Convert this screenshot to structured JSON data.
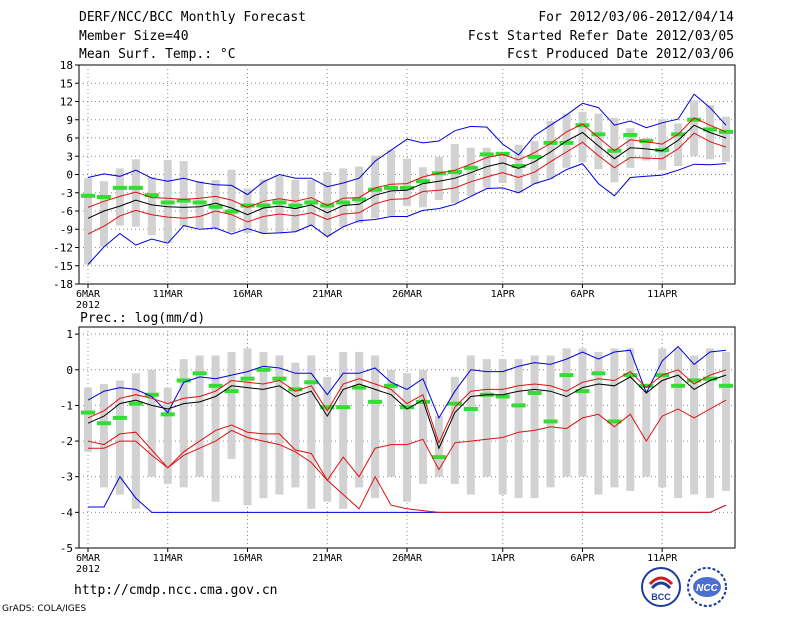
{
  "header": {
    "title": "DERF/NCC/BCC Monthly Forecast",
    "member_size": "Member Size=40",
    "variable": "Mean Surf. Temp.: °C",
    "period": "For 2012/03/06-2012/04/14",
    "started": "Fcst Started Refer Date 2012/03/05",
    "produced": "Fcst Produced Date 2012/03/06"
  },
  "footer": {
    "url": "http://cmdp.ncc.cma.gov.cn",
    "grads": "GrADS: COLA/IGES",
    "logo_bcc": "BCC",
    "logo_ncc": "NCC"
  },
  "colors": {
    "mean": "#000000",
    "spread": "#e01010",
    "extreme": "#0000dd",
    "bar": "#d2d2d2",
    "observed": "#33dd33"
  },
  "chart_data": [
    {
      "type": "box-line",
      "title": "Mean Surf. Temp.: °C",
      "ylim": [
        -18,
        18
      ],
      "yticks": [
        -18,
        -15,
        -12,
        -9,
        -6,
        -3,
        0,
        3,
        6,
        9,
        12,
        15,
        18
      ],
      "xticks": [
        {
          "day": 0,
          "label": "6MAR",
          "sub": "2012"
        },
        {
          "day": 5,
          "label": "11MAR"
        },
        {
          "day": 10,
          "label": "16MAR"
        },
        {
          "day": 15,
          "label": "21MAR"
        },
        {
          "day": 20,
          "label": "26MAR"
        },
        {
          "day": 26,
          "label": "1APR"
        },
        {
          "day": 31,
          "label": "6APR"
        },
        {
          "day": 36,
          "label": "11APR"
        }
      ],
      "ensemble_mean": [
        -7.2,
        -6.0,
        -5.2,
        -4.2,
        -5.0,
        -5.3,
        -5.4,
        -5.3,
        -4.7,
        -5.5,
        -6.6,
        -5.5,
        -5.2,
        -5.6,
        -5.0,
        -6.3,
        -5.1,
        -4.9,
        -3.4,
        -2.7,
        -2.6,
        -1.5,
        -1.1,
        -0.6,
        0.3,
        1.3,
        1.9,
        1.0,
        2.1,
        3.7,
        5.5,
        6.9,
        4.7,
        2.6,
        4.4,
        4.2,
        3.9,
        5.6,
        8.1,
        6.9,
        6.0
      ],
      "spread_upper": [
        -5.4,
        -4.4,
        -3.6,
        -2.9,
        -3.8,
        -3.9,
        -4.1,
        -3.9,
        -3.6,
        -4.2,
        -5.4,
        -4.4,
        -4.0,
        -4.4,
        -3.8,
        -5.1,
        -3.9,
        -3.8,
        -2.2,
        -1.6,
        -1.5,
        -0.4,
        0.2,
        0.7,
        1.7,
        2.8,
        3.3,
        2.4,
        3.6,
        5.1,
        7.0,
        8.3,
        6.1,
        3.9,
        5.7,
        5.4,
        5.0,
        6.6,
        9.3,
        8.1,
        7.0
      ],
      "spread_lower": [
        -9.8,
        -8.5,
        -6.8,
        -5.9,
        -6.6,
        -7.0,
        -7.2,
        -6.9,
        -6.0,
        -6.6,
        -7.8,
        -6.9,
        -6.5,
        -6.8,
        -6.3,
        -7.4,
        -6.5,
        -6.3,
        -4.8,
        -4.1,
        -4.0,
        -2.8,
        -2.6,
        -2.2,
        -1.2,
        -0.4,
        0.3,
        -0.5,
        0.4,
        2.1,
        3.7,
        5.3,
        3.1,
        1.1,
        2.8,
        2.7,
        2.6,
        4.2,
        6.8,
        5.4,
        4.5
      ],
      "max": [
        -0.5,
        0.1,
        -0.3,
        0.7,
        -0.6,
        -1.1,
        -0.6,
        -1.3,
        -1.7,
        -1.8,
        -3.3,
        -1.2,
        0.0,
        -0.6,
        -0.6,
        -2.0,
        -1.4,
        -0.6,
        2.2,
        4.0,
        5.8,
        5.2,
        5.5,
        7.2,
        7.9,
        7.8,
        5.0,
        3.2,
        6.4,
        8.1,
        9.8,
        11.7,
        11.0,
        8.1,
        8.8,
        7.7,
        8.5,
        9.1,
        13.2,
        11.0,
        8.1
      ],
      "min": [
        -14.8,
        -11.9,
        -9.7,
        -11.6,
        -10.6,
        -11.3,
        -8.4,
        -9.0,
        -8.8,
        -9.8,
        -8.9,
        -9.7,
        -9.6,
        -9.4,
        -8.3,
        -10.2,
        -8.6,
        -7.6,
        -7.4,
        -6.9,
        -6.9,
        -5.9,
        -5.6,
        -4.9,
        -3.6,
        -2.3,
        -2.2,
        -3.0,
        -1.5,
        -0.7,
        0.8,
        1.8,
        -1.5,
        -3.5,
        -0.5,
        -0.3,
        -0.1,
        0.7,
        1.7,
        1.6,
        1.8
      ],
      "bar_top": [
        -0.6,
        -1.1,
        1.0,
        2.5,
        -0.4,
        2.4,
        2.2,
        -1.1,
        -0.9,
        0.8,
        -2.3,
        -0.8,
        -0.2,
        -0.9,
        -0.9,
        0.4,
        1.0,
        1.3,
        3.1,
        4.0,
        2.6,
        1.2,
        2.9,
        5.0,
        4.4,
        4.4,
        3.0,
        4.9,
        5.5,
        8.8,
        10.0,
        10.3,
        10.0,
        9.3,
        7.6,
        6.0,
        9.1,
        8.4,
        12.2,
        11.4,
        9.5
      ],
      "bar_bottom": [
        -14.8,
        -11.9,
        -8.4,
        -8.6,
        -10.0,
        -11.3,
        -8.5,
        -8.8,
        -8.8,
        -9.5,
        -9.6,
        -9.8,
        -9.7,
        -9.4,
        -8.5,
        -10.2,
        -8.6,
        -8.0,
        -7.2,
        -6.8,
        -5.2,
        -5.4,
        -4.2,
        -4.7,
        -3.5,
        -2.2,
        -1.4,
        -3.0,
        -1.6,
        -0.8,
        1.1,
        2.0,
        0.9,
        -1.3,
        1.1,
        2.3,
        0.7,
        1.4,
        3.0,
        2.5,
        2.1
      ],
      "observed": [
        -3.5,
        -3.7,
        -2.2,
        -2.2,
        -3.4,
        -4.6,
        -4.3,
        -4.6,
        -5.3,
        -6.1,
        -5.1,
        -5.1,
        -4.6,
        -5.1,
        -4.6,
        -5.1,
        -4.6,
        -4.1,
        -2.5,
        -2.2,
        -2.2,
        -1.1,
        0.2,
        0.4,
        1.1,
        3.3,
        3.4,
        1.4,
        2.9,
        5.2,
        5.2,
        8.1,
        6.6,
        3.9,
        6.5,
        5.5,
        4.0,
        6.6,
        9.0,
        7.4,
        7.0
      ]
    },
    {
      "type": "box-line",
      "title": "Prec.: log(mm/d)",
      "ylim": [
        -5,
        1.2
      ],
      "yticks": [
        -5,
        -4,
        -3,
        -2,
        -1,
        0,
        1
      ],
      "xticks": [
        {
          "day": 0,
          "label": "6MAR",
          "sub": "2012"
        },
        {
          "day": 5,
          "label": "11MAR"
        },
        {
          "day": 10,
          "label": "16MAR"
        },
        {
          "day": 15,
          "label": "21MAR"
        },
        {
          "day": 20,
          "label": "26MAR"
        },
        {
          "day": 26,
          "label": "1APR"
        },
        {
          "day": 31,
          "label": "6APR"
        },
        {
          "day": 36,
          "label": "11APR"
        }
      ],
      "ensemble_mean": [
        -1.5,
        -1.3,
        -0.95,
        -0.85,
        -1.0,
        -1.1,
        -0.95,
        -0.9,
        -0.75,
        -0.45,
        -0.5,
        -0.55,
        -0.45,
        -0.75,
        -0.6,
        -1.3,
        -0.55,
        -0.4,
        -0.55,
        -0.7,
        -1.1,
        -0.85,
        -2.2,
        -1.2,
        -0.75,
        -0.7,
        -0.7,
        -0.6,
        -0.55,
        -0.6,
        -0.75,
        -0.5,
        -0.4,
        -0.45,
        -0.2,
        -0.65,
        -0.3,
        -0.15,
        -0.55,
        -0.3,
        -0.15
      ],
      "spread_upper": [
        -1.35,
        -1.15,
        -0.8,
        -0.7,
        -0.8,
        -0.95,
        -0.8,
        -0.75,
        -0.6,
        -0.3,
        -0.35,
        -0.4,
        -0.3,
        -0.6,
        -0.45,
        -1.15,
        -0.4,
        -0.25,
        -0.4,
        -0.55,
        -0.95,
        -0.7,
        -2.05,
        -1.05,
        -0.6,
        -0.55,
        -0.55,
        -0.45,
        -0.4,
        -0.45,
        -0.6,
        -0.35,
        -0.25,
        -0.3,
        -0.05,
        -0.5,
        -0.15,
        -0.0,
        -0.4,
        -0.15,
        0.0
      ],
      "spread_lower": [
        -2.0,
        -2.1,
        -1.8,
        -1.75,
        -2.25,
        -2.75,
        -2.3,
        -2.0,
        -1.7,
        -1.55,
        -1.75,
        -1.8,
        -1.8,
        -2.25,
        -2.35,
        -3.1,
        -2.45,
        -3.0,
        -2.2,
        -2.1,
        -2.1,
        -1.95,
        -2.8,
        -2.05,
        -2.0,
        -1.95,
        -1.9,
        -1.75,
        -1.7,
        -1.6,
        -1.65,
        -1.35,
        -1.25,
        -1.6,
        -1.25,
        -2.0,
        -1.3,
        -1.1,
        -1.35,
        -1.1,
        -0.85
      ],
      "spread_lower2": [
        -2.2,
        -2.2,
        -2.0,
        -2.0,
        -2.4,
        -2.75,
        -2.4,
        -2.2,
        -2.0,
        -1.7,
        -1.9,
        -2.0,
        -2.1,
        -2.3,
        -2.6,
        -3.1,
        -3.5,
        -3.9,
        -3.0,
        -3.8,
        -3.9,
        -3.95,
        -4.0,
        -4.0,
        -4.0,
        -4.0,
        -4.0,
        -4.0,
        -4.0,
        -4.0,
        -4.0,
        -4.0,
        -4.0,
        -4.0,
        -4.0,
        -4.0,
        -4.0,
        -4.0,
        -4.0,
        -4.0,
        -3.8
      ],
      "max": [
        -0.85,
        -0.6,
        -0.5,
        -0.55,
        -0.75,
        -1.2,
        -0.35,
        -0.2,
        -0.25,
        -0.15,
        -0.05,
        0.1,
        0.05,
        -0.1,
        -0.1,
        -0.7,
        -0.1,
        -0.1,
        0.05,
        -0.35,
        -0.55,
        -0.25,
        -1.35,
        -0.6,
        0.0,
        -0.05,
        -0.05,
        0.1,
        0.2,
        0.15,
        0.3,
        0.5,
        0.3,
        0.5,
        0.55,
        -0.65,
        0.25,
        0.65,
        0.15,
        0.5,
        0.55
      ],
      "min": [
        -3.85,
        -3.85,
        -3.0,
        -3.6,
        -4.0,
        -4.0,
        -4.0,
        -4.0,
        -4.0,
        -4.0,
        -4.0,
        -4.0,
        -4.0,
        -4.0,
        -4.0,
        -4.0,
        -4.0,
        -4.0,
        -4.0,
        -4.0,
        -4.0,
        -4.0,
        -4.0,
        -4.0,
        -4.0,
        -4.0,
        -4.0,
        -4.0,
        -4.0,
        -4.0,
        -4.0,
        -4.0,
        -4.0,
        -4.0,
        -4.0,
        -4.0,
        -4.0,
        -4.0,
        -4.0,
        -4.0,
        -3.8
      ],
      "bar_top": [
        -0.5,
        -0.4,
        -0.3,
        -0.1,
        0.0,
        -0.5,
        0.3,
        0.4,
        0.4,
        0.5,
        0.6,
        0.5,
        0.4,
        0.2,
        0.4,
        -0.2,
        0.5,
        0.5,
        0.4,
        0.0,
        -0.1,
        0.0,
        -1.3,
        -0.2,
        0.4,
        0.3,
        0.3,
        0.3,
        0.4,
        0.4,
        0.6,
        0.6,
        0.5,
        0.6,
        0.6,
        -0.6,
        0.6,
        0.6,
        0.4,
        0.6,
        0.5
      ],
      "bar_bottom": [
        -2.3,
        -3.3,
        -3.5,
        -3.9,
        -3.0,
        -3.2,
        -3.3,
        -3.0,
        -3.7,
        -2.5,
        -3.8,
        -3.6,
        -3.5,
        -3.3,
        -3.9,
        -3.7,
        -3.9,
        -3.3,
        -3.6,
        -3.0,
        -3.7,
        -3.2,
        -3.0,
        -3.2,
        -3.5,
        -3.0,
        -3.5,
        -3.6,
        -3.6,
        -3.3,
        -3.0,
        -3.0,
        -3.5,
        -3.3,
        -3.4,
        -3.0,
        -3.3,
        -3.6,
        -3.5,
        -3.6,
        -3.4
      ],
      "observed": [
        -1.2,
        -1.5,
        -1.35,
        -0.95,
        -0.7,
        -1.25,
        -0.3,
        -0.1,
        -0.45,
        -0.6,
        -0.25,
        0.0,
        -0.25,
        -0.55,
        -0.35,
        -1.05,
        -1.05,
        -0.5,
        -0.9,
        -0.45,
        -1.05,
        -0.9,
        -2.45,
        -0.95,
        -1.1,
        -0.7,
        -0.75,
        -1.0,
        -0.65,
        -1.45,
        -0.15,
        -0.6,
        -0.1,
        -1.45,
        -0.15,
        -0.45,
        -0.15,
        -0.45,
        -0.3,
        -0.25,
        -0.45
      ]
    }
  ]
}
